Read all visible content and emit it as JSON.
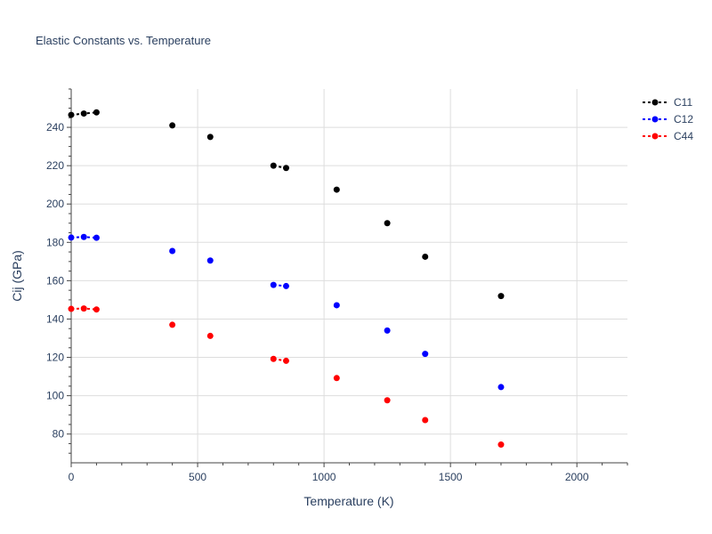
{
  "chart_data": {
    "type": "scatter",
    "title": "Elastic Constants vs. Temperature",
    "xlabel": "Temperature (K)",
    "ylabel": "Cij (GPa)",
    "xlim": [
      0,
      2200
    ],
    "ylim": [
      65,
      260
    ],
    "xticks": [
      0,
      500,
      1000,
      1500,
      2000
    ],
    "yticks": [
      80,
      100,
      120,
      140,
      160,
      180,
      200,
      220,
      240
    ],
    "grid": true,
    "legend_position": "top-right",
    "series": [
      {
        "name": "C11",
        "color": "#000000",
        "x": [
          0,
          50,
          100,
          400,
          550,
          800,
          850,
          1050,
          1250,
          1400,
          1700
        ],
        "y": [
          246.5,
          247.2,
          247.8,
          241.0,
          235.0,
          220.0,
          218.8,
          207.5,
          190.0,
          172.5,
          152.0
        ],
        "connected_segments": [
          [
            0,
            2
          ],
          [
            5,
            6
          ]
        ]
      },
      {
        "name": "C12",
        "color": "#0000ff",
        "x": [
          0,
          50,
          100,
          400,
          550,
          800,
          850,
          1050,
          1250,
          1400,
          1700
        ],
        "y": [
          182.5,
          182.8,
          182.4,
          175.5,
          170.5,
          157.8,
          157.2,
          147.2,
          134.0,
          121.8,
          104.5
        ],
        "connected_segments": [
          [
            0,
            2
          ],
          [
            5,
            6
          ]
        ]
      },
      {
        "name": "C44",
        "color": "#ff0000",
        "x": [
          0,
          50,
          100,
          400,
          550,
          800,
          850,
          1050,
          1250,
          1400,
          1700
        ],
        "y": [
          145.3,
          145.5,
          145.0,
          137.0,
          131.2,
          119.2,
          118.2,
          109.2,
          97.6,
          87.3,
          74.5
        ],
        "connected_segments": [
          [
            0,
            2
          ],
          [
            5,
            6
          ]
        ]
      }
    ]
  }
}
